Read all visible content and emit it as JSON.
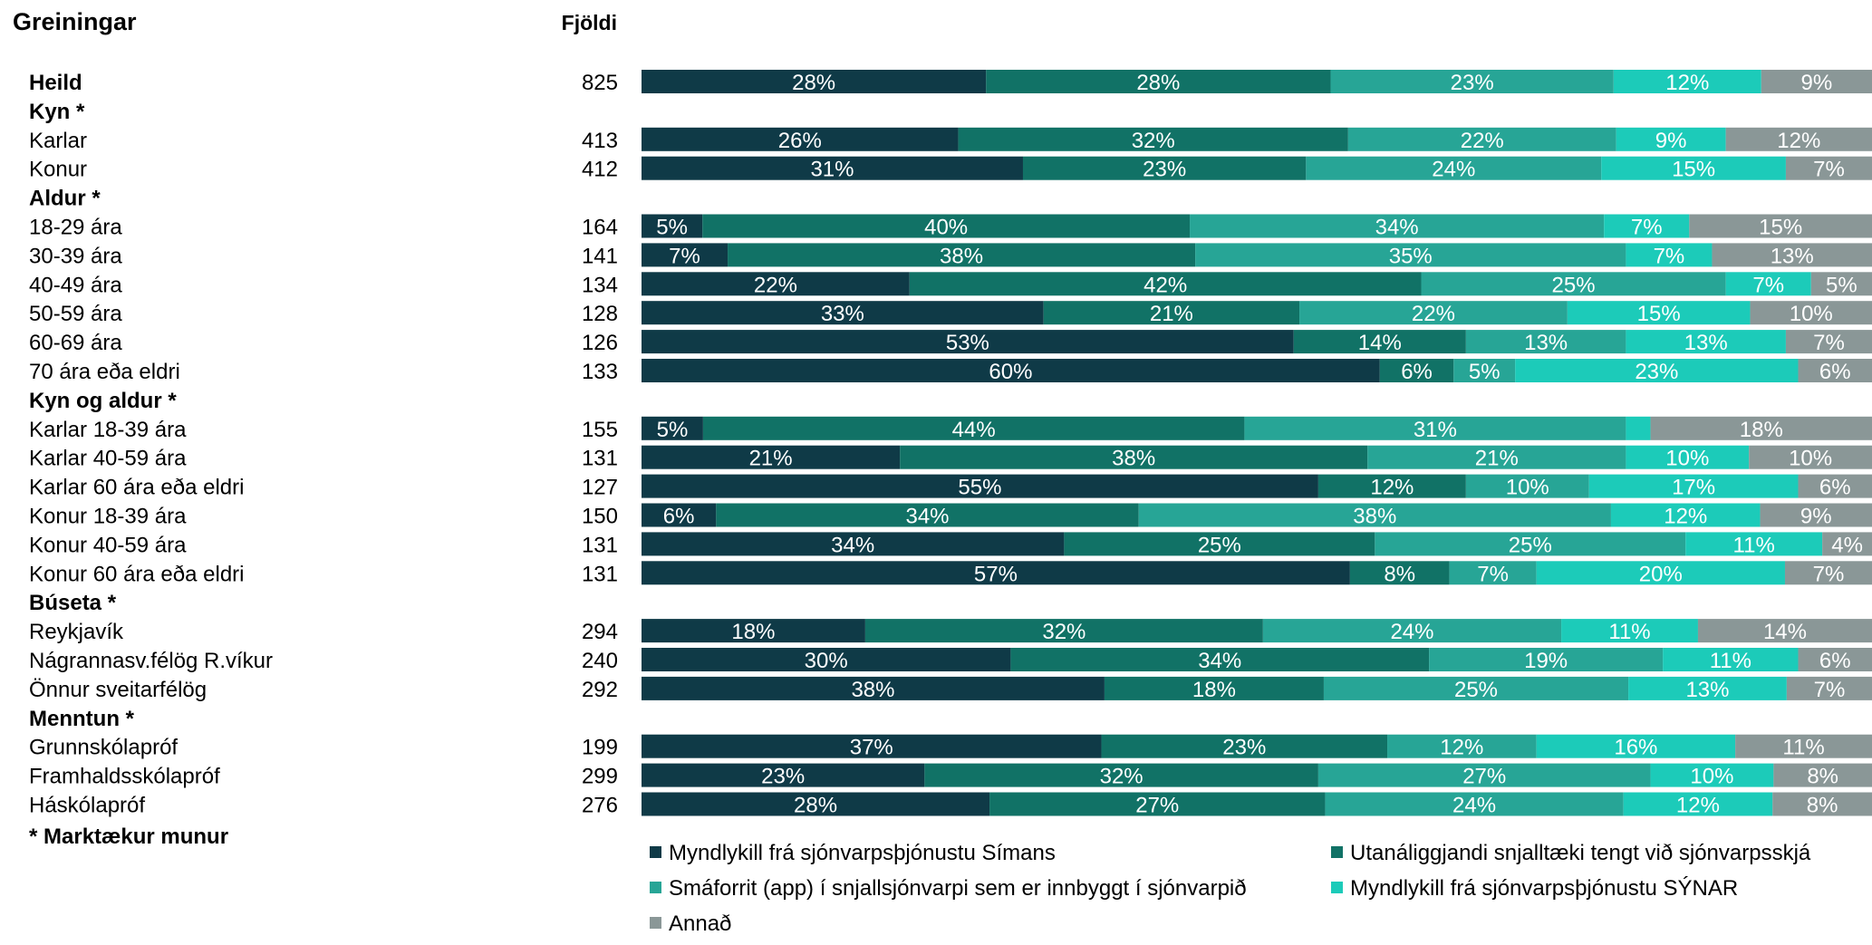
{
  "header": {
    "title": "Greiningar",
    "count_label": "Fjöldi"
  },
  "footnote": "* Marktækur munur",
  "chart_data": {
    "type": "bar",
    "orientation": "horizontal",
    "stacked": "percent",
    "series": [
      {
        "name": "Myndlykill frá sjónvarpsþjónustu Símans",
        "color": "#0f3a47"
      },
      {
        "name": "Utanáliggjandi snjalltæki tengt við sjónvarpsskjá",
        "color": "#117266"
      },
      {
        "name": "Smáforrit (app) í snjallsjónvarpi sem er innbyggt í sjónvarpið",
        "color": "#27a596"
      },
      {
        "name": "Myndlykill frá sjónvarpsþjónustu SÝNAR",
        "color": "#1ccbb9"
      },
      {
        "name": "Annað",
        "color": "#8a9797"
      }
    ],
    "rows": [
      {
        "label": "Heild",
        "bold": true,
        "n": "825",
        "values": [
          28,
          28,
          23,
          12,
          9
        ],
        "labels": [
          "28%",
          "28%",
          "23%",
          "12%",
          "9%"
        ]
      },
      {
        "label": "Kyn *",
        "bold": true,
        "header": true
      },
      {
        "label": "Karlar",
        "n": "413",
        "values": [
          26,
          32,
          22,
          9,
          12
        ],
        "labels": [
          "26%",
          "32%",
          "22%",
          "9%",
          "12%"
        ]
      },
      {
        "label": "Konur",
        "n": "412",
        "values": [
          31,
          23,
          24,
          15,
          7
        ],
        "labels": [
          "31%",
          "23%",
          "24%",
          "15%",
          "7%"
        ]
      },
      {
        "label": "Aldur *",
        "bold": true,
        "header": true
      },
      {
        "label": "18-29 ára",
        "n": "164",
        "values": [
          5,
          40,
          34,
          7,
          15
        ],
        "labels": [
          "5%",
          "40%",
          "34%",
          "7%",
          "15%"
        ]
      },
      {
        "label": "30-39 ára",
        "n": "141",
        "values": [
          7,
          38,
          35,
          7,
          13
        ],
        "labels": [
          "7%",
          "38%",
          "35%",
          "7%",
          "13%"
        ]
      },
      {
        "label": "40-49 ára",
        "n": "134",
        "values": [
          22,
          42,
          25,
          7,
          5
        ],
        "labels": [
          "22%",
          "42%",
          "25%",
          "7%",
          "5%"
        ]
      },
      {
        "label": "50-59 ára",
        "n": "128",
        "values": [
          33,
          21,
          22,
          15,
          10
        ],
        "labels": [
          "33%",
          "21%",
          "22%",
          "15%",
          "10%"
        ]
      },
      {
        "label": "60-69 ára",
        "n": "126",
        "values": [
          53,
          14,
          13,
          13,
          7
        ],
        "labels": [
          "53%",
          "14%",
          "13%",
          "13%",
          "7%"
        ]
      },
      {
        "label": "70 ára eða eldri",
        "n": "133",
        "values": [
          60,
          6,
          5,
          23,
          6
        ],
        "labels": [
          "60%",
          "6%",
          "5%",
          "23%",
          "6%"
        ]
      },
      {
        "label": "Kyn og aldur *",
        "bold": true,
        "header": true
      },
      {
        "label": "Karlar 18-39 ára",
        "n": "155",
        "values": [
          5,
          44,
          31,
          2,
          18
        ],
        "labels": [
          "5%",
          "44%",
          "31%",
          "",
          "18%"
        ]
      },
      {
        "label": "Karlar 40-59 ára",
        "n": "131",
        "values": [
          21,
          38,
          21,
          10,
          10
        ],
        "labels": [
          "21%",
          "38%",
          "21%",
          "10%",
          "10%"
        ]
      },
      {
        "label": "Karlar 60 ára eða eldri",
        "n": "127",
        "values": [
          55,
          12,
          10,
          17,
          6
        ],
        "labels": [
          "55%",
          "12%",
          "10%",
          "17%",
          "6%"
        ]
      },
      {
        "label": "Konur 18-39 ára",
        "n": "150",
        "values": [
          6,
          34,
          38,
          12,
          9
        ],
        "labels": [
          "6%",
          "34%",
          "38%",
          "12%",
          "9%"
        ]
      },
      {
        "label": "Konur 40-59 ára",
        "n": "131",
        "values": [
          34,
          25,
          25,
          11,
          4
        ],
        "labels": [
          "34%",
          "25%",
          "25%",
          "11%",
          "4%"
        ]
      },
      {
        "label": "Konur 60 ára eða eldri",
        "n": "131",
        "values": [
          57,
          8,
          7,
          20,
          7
        ],
        "labels": [
          "57%",
          "8%",
          "7%",
          "20%",
          "7%"
        ]
      },
      {
        "label": "Búseta *",
        "bold": true,
        "header": true
      },
      {
        "label": "Reykjavík",
        "n": "294",
        "values": [
          18,
          32,
          24,
          11,
          14
        ],
        "labels": [
          "18%",
          "32%",
          "24%",
          "11%",
          "14%"
        ]
      },
      {
        "label": "Nágrannasv.félög R.víkur",
        "n": "240",
        "values": [
          30,
          34,
          19,
          11,
          6
        ],
        "labels": [
          "30%",
          "34%",
          "19%",
          "11%",
          "6%"
        ]
      },
      {
        "label": "Önnur sveitarfélög",
        "n": "292",
        "values": [
          38,
          18,
          25,
          13,
          7
        ],
        "labels": [
          "38%",
          "18%",
          "25%",
          "13%",
          "7%"
        ]
      },
      {
        "label": "Menntun *",
        "bold": true,
        "header": true
      },
      {
        "label": "Grunnskólapróf",
        "n": "199",
        "values": [
          37,
          23,
          12,
          16,
          11
        ],
        "labels": [
          "37%",
          "23%",
          "12%",
          "16%",
          "11%"
        ]
      },
      {
        "label": "Framhaldsskólapróf",
        "n": "299",
        "values": [
          23,
          32,
          27,
          10,
          8
        ],
        "labels": [
          "23%",
          "32%",
          "27%",
          "10%",
          "8%"
        ]
      },
      {
        "label": "Háskólapróf",
        "n": "276",
        "values": [
          28,
          27,
          24,
          12,
          8
        ],
        "labels": [
          "28%",
          "27%",
          "24%",
          "12%",
          "8%"
        ]
      }
    ],
    "legend_position": "bottom",
    "grid": false
  }
}
